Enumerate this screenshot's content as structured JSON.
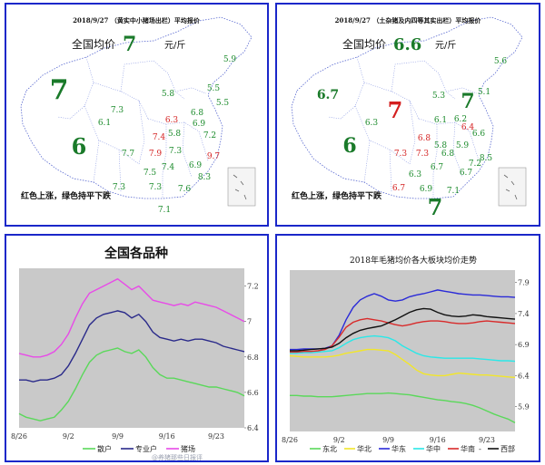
{
  "map_left": {
    "subtitle": "2018/9/27 （黄实中小猪场出栏）平均报价",
    "avg_label": "全国均价",
    "avg_value": "7",
    "unit": "元/斤",
    "note": "红色上涨，绿色持平下跌",
    "labels": [
      {
        "value": "5.9",
        "color": "#1a8a2a"
      },
      {
        "value": "7",
        "color": "#1a7a2a"
      },
      {
        "value": "5.8",
        "color": "#1a8a2a"
      },
      {
        "value": "5.5",
        "color": "#1a8a2a"
      },
      {
        "value": "7.3",
        "color": "#1a8a2a"
      },
      {
        "value": "5.5",
        "color": "#1a8a2a"
      },
      {
        "value": "6.1",
        "color": "#1a8a2a"
      },
      {
        "value": "6.8",
        "color": "#1a8a2a"
      },
      {
        "value": "6.3",
        "color": "#d42020"
      },
      {
        "value": "6.9",
        "color": "#1a8a2a"
      },
      {
        "value": "7.4",
        "color": "#d42020"
      },
      {
        "value": "5.8",
        "color": "#1a8a2a"
      },
      {
        "value": "7.2",
        "color": "#1a8a2a"
      },
      {
        "value": "6",
        "color": "#1a7a2a"
      },
      {
        "value": "7.7",
        "color": "#1a8a2a"
      },
      {
        "value": "7.9",
        "color": "#d42020"
      },
      {
        "value": "7.3",
        "color": "#1a8a2a"
      },
      {
        "value": "9.7",
        "color": "#d42020"
      },
      {
        "value": "7.4",
        "color": "#1a8a2a"
      },
      {
        "value": "6.9",
        "color": "#1a8a2a"
      },
      {
        "value": "7.5",
        "color": "#1a8a2a"
      },
      {
        "value": "8.3",
        "color": "#1a8a2a"
      },
      {
        "value": "7.3",
        "color": "#1a8a2a"
      },
      {
        "value": "7.3",
        "color": "#1a8a2a"
      },
      {
        "value": "7.6",
        "color": "#1a8a2a"
      },
      {
        "value": "7.1",
        "color": "#1a8a2a"
      }
    ]
  },
  "map_right": {
    "subtitle": "2018/9/27 （土杂猪及内四等其实出栏）平均报价",
    "avg_label": "全国均价",
    "avg_value": "6.6",
    "unit": "元/斤",
    "note": "红色上涨，绿色持平下跌",
    "labels": [
      {
        "value": "5.6",
        "color": "#1a8a2a"
      },
      {
        "value": "6.7",
        "color": "#1a7a2a"
      },
      {
        "value": "5.3",
        "color": "#1a8a2a"
      },
      {
        "value": "5.1",
        "color": "#1a8a2a"
      },
      {
        "value": "7",
        "color": "#1a7a2a"
      },
      {
        "value": "7",
        "color": "#d42020"
      },
      {
        "value": "6.3",
        "color": "#1a8a2a"
      },
      {
        "value": "6.1",
        "color": "#1a8a2a"
      },
      {
        "value": "6.2",
        "color": "#1a8a2a"
      },
      {
        "value": "6.4",
        "color": "#d42020"
      },
      {
        "value": "6.8",
        "color": "#d42020"
      },
      {
        "value": "5.8",
        "color": "#1a8a2a"
      },
      {
        "value": "6.6",
        "color": "#1a8a2a"
      },
      {
        "value": "6",
        "color": "#1a7a2a"
      },
      {
        "value": "5.9",
        "color": "#1a8a2a"
      },
      {
        "value": "7.3",
        "color": "#d42020"
      },
      {
        "value": "7.3",
        "color": "#d42020"
      },
      {
        "value": "6.8",
        "color": "#1a8a2a"
      },
      {
        "value": "6.7",
        "color": "#1a8a2a"
      },
      {
        "value": "7.2",
        "color": "#1a8a2a"
      },
      {
        "value": "8.5",
        "color": "#1a8a2a"
      },
      {
        "value": "6.3",
        "color": "#1a8a2a"
      },
      {
        "value": "6.7",
        "color": "#1a8a2a"
      },
      {
        "value": "6.7",
        "color": "#d42020"
      },
      {
        "value": "6.9",
        "color": "#1a8a2a"
      },
      {
        "value": "7.1",
        "color": "#1a8a2a"
      },
      {
        "value": "7",
        "color": "#1a7a2a"
      }
    ]
  },
  "chart_data": [
    {
      "type": "line",
      "title": "全国各品种",
      "x_ticks": [
        "8/26",
        "9/2",
        "9/9",
        "9/16",
        "9/23"
      ],
      "x": [
        "8/26",
        "8/27",
        "8/28",
        "8/29",
        "8/30",
        "8/31",
        "9/1",
        "9/2",
        "9/3",
        "9/4",
        "9/5",
        "9/6",
        "9/7",
        "9/8",
        "9/9",
        "9/10",
        "9/11",
        "9/12",
        "9/13",
        "9/14",
        "9/15",
        "9/16",
        "9/17",
        "9/18",
        "9/19",
        "9/20",
        "9/21",
        "9/22",
        "9/23",
        "9/24",
        "9/25",
        "9/26",
        "9/27"
      ],
      "ylim": [
        6.4,
        7.3
      ],
      "y_ticks": [
        6.4,
        6.6,
        6.8,
        7,
        7.2
      ],
      "series": [
        {
          "name": "散户",
          "color": "#5ad85a",
          "values": [
            6.48,
            6.46,
            6.45,
            6.44,
            6.45,
            6.46,
            6.5,
            6.55,
            6.62,
            6.7,
            6.77,
            6.81,
            6.83,
            6.84,
            6.85,
            6.83,
            6.82,
            6.84,
            6.8,
            6.74,
            6.7,
            6.68,
            6.68,
            6.67,
            6.66,
            6.65,
            6.64,
            6.63,
            6.63,
            6.62,
            6.61,
            6.6,
            6.58
          ]
        },
        {
          "name": "专业户",
          "color": "#2a2a8a",
          "values": [
            6.67,
            6.67,
            6.66,
            6.67,
            6.67,
            6.68,
            6.7,
            6.75,
            6.82,
            6.9,
            6.98,
            7.02,
            7.04,
            7.05,
            7.06,
            7.05,
            7.02,
            7.04,
            7.0,
            6.94,
            6.91,
            6.9,
            6.89,
            6.9,
            6.89,
            6.9,
            6.9,
            6.89,
            6.88,
            6.86,
            6.85,
            6.84,
            6.83
          ]
        },
        {
          "name": "猪场",
          "color": "#e84ae8",
          "values": [
            6.82,
            6.81,
            6.8,
            6.8,
            6.81,
            6.83,
            6.87,
            6.93,
            7.02,
            7.1,
            7.16,
            7.18,
            7.2,
            7.22,
            7.24,
            7.21,
            7.18,
            7.2,
            7.16,
            7.12,
            7.11,
            7.1,
            7.09,
            7.1,
            7.09,
            7.11,
            7.1,
            7.09,
            7.08,
            7.06,
            7.04,
            7.02,
            7.0
          ]
        }
      ]
    },
    {
      "type": "line",
      "title": "2018年毛猪均价各大板块均价走势",
      "x_ticks": [
        "8/26",
        "9/2",
        "9/9",
        "9/16",
        "9/23"
      ],
      "x": [
        "8/26",
        "8/27",
        "8/28",
        "8/29",
        "8/30",
        "8/31",
        "9/1",
        "9/2",
        "9/3",
        "9/4",
        "9/5",
        "9/6",
        "9/7",
        "9/8",
        "9/9",
        "9/10",
        "9/11",
        "9/12",
        "9/13",
        "9/14",
        "9/15",
        "9/16",
        "9/17",
        "9/18",
        "9/19",
        "9/20",
        "9/21",
        "9/22",
        "9/23",
        "9/24",
        "9/25",
        "9/26",
        "9/27"
      ],
      "ylim": [
        5.5,
        8.1
      ],
      "y_ticks": [
        5.9,
        6.4,
        6.9,
        7.4,
        7.9
      ],
      "series": [
        {
          "name": "东北",
          "color": "#5ad85a",
          "values": [
            6.08,
            6.08,
            6.07,
            6.07,
            6.06,
            6.06,
            6.06,
            6.07,
            6.08,
            6.09,
            6.1,
            6.11,
            6.11,
            6.11,
            6.12,
            6.11,
            6.1,
            6.09,
            6.07,
            6.05,
            6.03,
            6.01,
            6.0,
            5.98,
            5.97,
            5.95,
            5.92,
            5.88,
            5.83,
            5.78,
            5.74,
            5.7,
            5.64
          ]
        },
        {
          "name": "华北",
          "color": "#f2e62a",
          "values": [
            6.72,
            6.71,
            6.7,
            6.7,
            6.7,
            6.7,
            6.71,
            6.73,
            6.76,
            6.78,
            6.8,
            6.82,
            6.82,
            6.81,
            6.8,
            6.74,
            6.66,
            6.58,
            6.49,
            6.43,
            6.41,
            6.4,
            6.4,
            6.42,
            6.44,
            6.43,
            6.42,
            6.41,
            6.41,
            6.4,
            6.39,
            6.38,
            6.37
          ]
        },
        {
          "name": "华东",
          "color": "#2a2ad8",
          "values": [
            6.82,
            6.82,
            6.83,
            6.83,
            6.83,
            6.84,
            6.88,
            7.05,
            7.3,
            7.5,
            7.62,
            7.68,
            7.72,
            7.68,
            7.62,
            7.6,
            7.62,
            7.67,
            7.7,
            7.72,
            7.75,
            7.78,
            7.76,
            7.74,
            7.72,
            7.71,
            7.7,
            7.7,
            7.69,
            7.68,
            7.67,
            7.67,
            7.66
          ]
        },
        {
          "name": "华中",
          "color": "#2ae8e8",
          "values": [
            6.76,
            6.76,
            6.77,
            6.77,
            6.78,
            6.79,
            6.8,
            6.85,
            6.92,
            6.98,
            7.01,
            7.03,
            7.04,
            7.03,
            7.01,
            6.96,
            6.88,
            6.82,
            6.76,
            6.72,
            6.7,
            6.69,
            6.68,
            6.68,
            6.68,
            6.68,
            6.68,
            6.67,
            6.66,
            6.65,
            6.64,
            6.64,
            6.63
          ]
        },
        {
          "name": "华南",
          "color": "#d82a2a",
          "values": [
            6.78,
            6.78,
            6.79,
            6.79,
            6.8,
            6.82,
            6.88,
            7.02,
            7.18,
            7.26,
            7.3,
            7.32,
            7.3,
            7.28,
            7.25,
            7.22,
            7.2,
            7.22,
            7.25,
            7.27,
            7.28,
            7.28,
            7.27,
            7.25,
            7.24,
            7.24,
            7.25,
            7.27,
            7.28,
            7.27,
            7.26,
            7.25,
            7.24
          ]
        },
        {
          "name": "西部",
          "color": "#111111",
          "values": [
            6.8,
            6.8,
            6.81,
            6.82,
            6.83,
            6.84,
            6.86,
            6.92,
            7.01,
            7.08,
            7.13,
            7.16,
            7.18,
            7.2,
            7.25,
            7.3,
            7.36,
            7.42,
            7.46,
            7.48,
            7.47,
            7.42,
            7.38,
            7.36,
            7.35,
            7.36,
            7.38,
            7.37,
            7.35,
            7.34,
            7.33,
            7.32,
            7.31
          ]
        }
      ],
      "legend_sep": "-"
    }
  ],
  "watermark": "@养猪那些日报评"
}
